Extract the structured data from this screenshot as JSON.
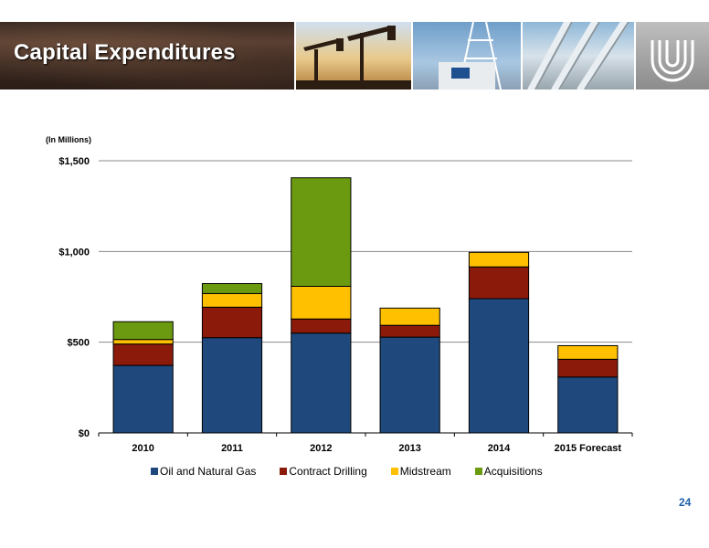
{
  "header": {
    "title": "Capital Expenditures"
  },
  "units_label": "(In Millions)",
  "page_number": "24",
  "chart_data": {
    "type": "bar",
    "stacked": true,
    "categories": [
      "2010",
      "2011",
      "2012",
      "2013",
      "2014",
      "2015 Forecast"
    ],
    "series": [
      {
        "name": "Oil and Natural Gas",
        "color": "#1f497d",
        "values": [
          372,
          525,
          550,
          528,
          740,
          308
        ]
      },
      {
        "name": "Contract Drilling",
        "color": "#8b1a0b",
        "values": [
          118,
          168,
          78,
          65,
          175,
          98
        ]
      },
      {
        "name": "Midstream",
        "color": "#ffc000",
        "values": [
          25,
          75,
          180,
          95,
          80,
          75
        ]
      },
      {
        "name": "Acquisitions",
        "color": "#6b9a10",
        "values": [
          98,
          55,
          598,
          0,
          0,
          0
        ]
      }
    ],
    "yticks": [
      "$0",
      "$500",
      "$1,000",
      "$1,500"
    ],
    "ylim": [
      0,
      1500
    ],
    "grid": true,
    "legend_position": "bottom"
  }
}
